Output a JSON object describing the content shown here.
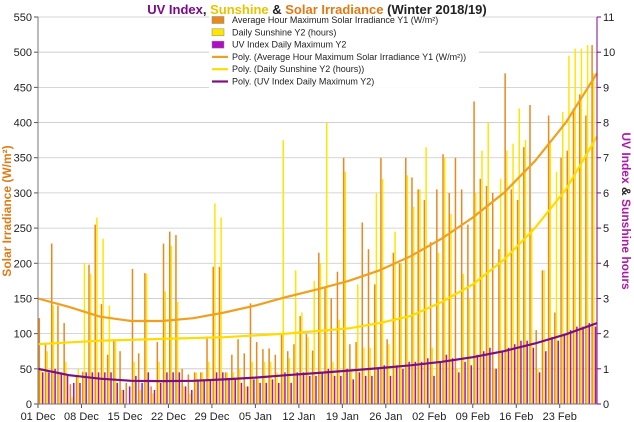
{
  "chart_data": {
    "type": "bar",
    "title_parts": [
      {
        "text": "UV Index",
        "color": "#7a0a8a"
      },
      {
        "text": ", ",
        "color": "#222222"
      },
      {
        "text": "Sunshine",
        "color": "#e8c400"
      },
      {
        "text": " & ",
        "color": "#222222"
      },
      {
        "text": "Solar Irradiance",
        "color": "#e07a14"
      },
      {
        "text": " (Winter 2018/19)",
        "color": "#222222"
      }
    ],
    "ylabel_left": "Solar Irradiance (W/m²)",
    "ylabel_right_parts": [
      {
        "text": "UV Index",
        "color": "#aa1aaa"
      },
      {
        "text": " & ",
        "color": "#222222"
      },
      {
        "text": "Sunshine hours",
        "color": "#aa1aaa"
      }
    ],
    "y_left": {
      "min": 0,
      "max": 550,
      "ticks": [
        0,
        50,
        100,
        150,
        200,
        250,
        300,
        350,
        400,
        450,
        500,
        550
      ]
    },
    "y_right": {
      "min": 0,
      "max": 11,
      "ticks": [
        0,
        1,
        2,
        3,
        4,
        5,
        6,
        7,
        8,
        9,
        10,
        11
      ]
    },
    "x_ticks": [
      {
        "label": "01 Dec",
        "day": 0
      },
      {
        "label": "08 Dec",
        "day": 7
      },
      {
        "label": "15 Dec",
        "day": 14
      },
      {
        "label": "22 Dec",
        "day": 21
      },
      {
        "label": "29 Dec",
        "day": 28
      },
      {
        "label": "05 Jan",
        "day": 35
      },
      {
        "label": "12 Jan",
        "day": 42
      },
      {
        "label": "19 Jan",
        "day": 49
      },
      {
        "label": "26 Jan",
        "day": 56
      },
      {
        "label": "02 Feb",
        "day": 63
      },
      {
        "label": "09 Feb",
        "day": 70
      },
      {
        "label": "16 Feb",
        "day": 77
      },
      {
        "label": "23 Feb",
        "day": 84
      }
    ],
    "x_days": 90,
    "series": [
      {
        "name": "Average Hour Maximum Solar Irradiance Y1 (W/m²)",
        "axis": "left",
        "color": "#e8891e",
        "values": [
          122,
          87,
          228,
          140,
          115,
          28,
          40,
          46,
          198,
          255,
          142,
          70,
          92,
          75,
          30,
          192,
          72,
          186,
          25,
          88,
          228,
          245,
          240,
          50,
          42,
          45,
          45,
          96,
          195,
          195,
          45,
          70,
          92,
          72,
          143,
          88,
          78,
          79,
          70,
          98,
          75,
          85,
          125,
          100,
          76,
          215,
          165,
          150,
          188,
          350,
          85,
          88,
          258,
          220,
          170,
          350,
          92,
          215,
          200,
          350,
          322,
          305,
          290,
          230,
          305,
          355,
          300,
          350,
          305,
          255,
          430,
          320,
          310,
          300,
          220,
          470,
          305,
          290,
          365,
          425,
          105,
          190,
          410,
          130,
          350,
          360,
          420,
          440,
          410,
          510
        ]
      },
      {
        "name": "Daily Sunshine Y2 (hours)",
        "axis": "right",
        "color": "#ffe600",
        "values": [
          1.0,
          1.5,
          2.8,
          0.9,
          1.2,
          0.2,
          1.0,
          4.0,
          3.7,
          5.3,
          4.7,
          2.8,
          1.8,
          0.4,
          0.0,
          1.2,
          0.4,
          3.7,
          0.3,
          1.2,
          3.2,
          4.5,
          2.9,
          0.5,
          0.3,
          0.9,
          0.9,
          1.2,
          5.7,
          5.3,
          0.9,
          0.9,
          1.0,
          0.5,
          1.2,
          0.7,
          1.2,
          1.2,
          0.9,
          7.5,
          1.3,
          3.8,
          2.6,
          1.9,
          3.5,
          4.0,
          8.0,
          1.2,
          2.4,
          6.6,
          1.0,
          3.4,
          1.6,
          1.6,
          6.0,
          6.4,
          1.7,
          4.9,
          4.0,
          6.5,
          5.6,
          6.1,
          7.3,
          1.6,
          4.3,
          7.0,
          5.4,
          1.0,
          3.7,
          3.0,
          6.0,
          7.2,
          8.0,
          1.0,
          6.4,
          7.2,
          7.4,
          8.4,
          7.5,
          5.0,
          1.0,
          3.8,
          7.4,
          6.6,
          8.3,
          9.9,
          10.1,
          10.1,
          10.2,
          9.4
        ]
      },
      {
        "name": "UV Index Daily Maximum Y2",
        "axis": "right",
        "color": "#aa10c0",
        "values": [
          0.9,
          0.9,
          1.0,
          0.9,
          0.8,
          0.6,
          0.6,
          0.9,
          0.9,
          0.9,
          0.9,
          0.9,
          0.6,
          0.4,
          0.5,
          0.8,
          0.6,
          0.9,
          0.4,
          0.6,
          0.9,
          0.9,
          0.9,
          0.5,
          0.4,
          0.7,
          0.7,
          0.7,
          0.9,
          0.9,
          0.7,
          0.7,
          0.6,
          0.5,
          0.7,
          0.6,
          0.6,
          0.7,
          0.6,
          0.9,
          0.6,
          0.9,
          0.9,
          0.8,
          0.8,
          0.9,
          1.0,
          0.8,
          0.8,
          1.0,
          0.7,
          0.9,
          0.8,
          0.8,
          1.0,
          1.1,
          0.8,
          1.1,
          1.0,
          1.2,
          1.2,
          1.2,
          1.3,
          0.8,
          1.2,
          1.4,
          1.3,
          0.9,
          1.2,
          1.1,
          1.4,
          1.5,
          1.6,
          1.0,
          1.5,
          1.6,
          1.7,
          1.8,
          1.8,
          1.6,
          0.9,
          1.5,
          1.9,
          1.8,
          2.0,
          2.1,
          2.2,
          2.2,
          2.3,
          2.2
        ]
      }
    ],
    "trendlines": [
      {
        "name": "Poly. (Average Hour Maximum Solar Irradiance Y1 (W/m²))",
        "axis": "left",
        "color": "#f0a020",
        "points": [
          [
            0,
            150
          ],
          [
            5,
            138
          ],
          [
            10,
            124
          ],
          [
            15,
            118
          ],
          [
            20,
            118
          ],
          [
            25,
            122
          ],
          [
            30,
            130
          ],
          [
            35,
            140
          ],
          [
            40,
            152
          ],
          [
            45,
            163
          ],
          [
            50,
            175
          ],
          [
            55,
            190
          ],
          [
            60,
            210
          ],
          [
            65,
            235
          ],
          [
            70,
            265
          ],
          [
            75,
            300
          ],
          [
            80,
            345
          ],
          [
            85,
            400
          ],
          [
            90,
            470
          ]
        ]
      },
      {
        "name": "Poly. (Daily Sunshine Y2 (hours))",
        "axis": "right",
        "color": "#ffdc00",
        "points": [
          [
            0,
            1.7
          ],
          [
            10,
            1.8
          ],
          [
            20,
            1.85
          ],
          [
            30,
            1.9
          ],
          [
            40,
            2.0
          ],
          [
            50,
            2.15
          ],
          [
            55,
            2.3
          ],
          [
            60,
            2.5
          ],
          [
            65,
            2.9
          ],
          [
            70,
            3.4
          ],
          [
            75,
            4.1
          ],
          [
            80,
            5.0
          ],
          [
            85,
            6.1
          ],
          [
            90,
            7.6
          ]
        ]
      },
      {
        "name": "Poly. (UV Index Daily Maximum Y2)",
        "axis": "right",
        "color": "#7a1080",
        "points": [
          [
            0,
            1.0
          ],
          [
            5,
            0.82
          ],
          [
            10,
            0.72
          ],
          [
            15,
            0.66
          ],
          [
            20,
            0.65
          ],
          [
            25,
            0.66
          ],
          [
            30,
            0.7
          ],
          [
            35,
            0.75
          ],
          [
            40,
            0.82
          ],
          [
            45,
            0.88
          ],
          [
            50,
            0.95
          ],
          [
            55,
            1.02
          ],
          [
            60,
            1.1
          ],
          [
            65,
            1.2
          ],
          [
            70,
            1.33
          ],
          [
            75,
            1.5
          ],
          [
            80,
            1.72
          ],
          [
            85,
            1.98
          ],
          [
            90,
            2.3
          ]
        ]
      }
    ],
    "legend_placement": "top-right"
  }
}
